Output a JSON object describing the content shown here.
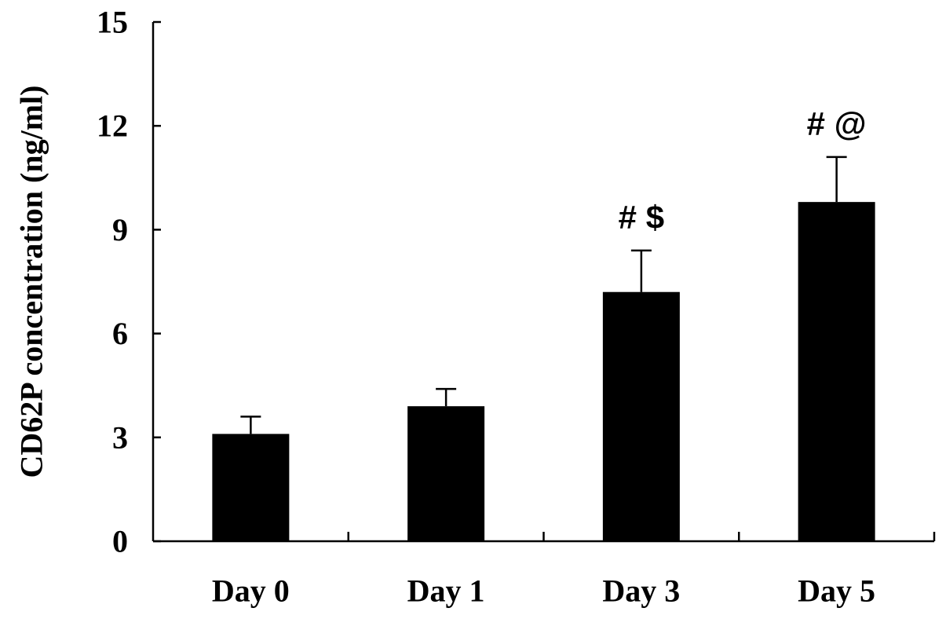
{
  "chart_data": {
    "type": "bar",
    "title": "",
    "xlabel": "",
    "ylabel": "CD62P concentration (ng/ml)",
    "categories": [
      "Day 0",
      "Day 1",
      "Day 3",
      "Day 5"
    ],
    "values": [
      3.1,
      3.9,
      7.2,
      9.8
    ],
    "error_upper": [
      0.5,
      0.5,
      1.2,
      1.3
    ],
    "annotations": [
      "",
      "",
      "# $",
      "# @"
    ],
    "yticks": [
      "0",
      "3",
      "6",
      "9",
      "12",
      "15"
    ],
    "ylim": [
      0,
      15
    ],
    "grid": false,
    "legend": "none",
    "bar_color": "#000000"
  }
}
